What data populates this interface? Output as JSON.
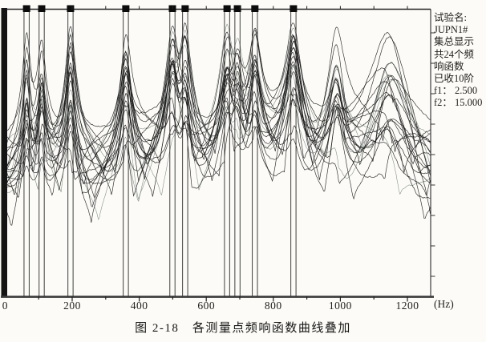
{
  "figure": {
    "caption": "图 2-18　各测量点频响函数曲线叠加"
  },
  "info_panel": {
    "lines": [
      "试验名:",
      "JUPN1#",
      "集总显示",
      "共24个频",
      "响函数",
      "已收10阶",
      "f1： 2.500",
      "f2： 15.000"
    ]
  },
  "chart_data": {
    "type": "line",
    "title": "各测量点频响函数曲线叠加",
    "x_unit": "(Hz)",
    "xlim": [
      0,
      1270
    ],
    "x_ticks": [
      0,
      200,
      400,
      600,
      800,
      1000,
      1200
    ],
    "x_minor_tick_step_hz": 100,
    "grid": false,
    "legend": null,
    "num_curves": 24,
    "marked_mode_count": 10,
    "marked_mode_frequencies_hz": [
      64,
      109,
      195,
      360,
      499,
      537,
      662,
      693,
      745,
      860
    ],
    "analysis_band": {
      "f1": "2.500",
      "f2": "15.000"
    },
    "resonances": [
      {
        "f_hz": 64,
        "rel_amp": 0.6,
        "half_width_hz": 9
      },
      {
        "f_hz": 109,
        "rel_amp": 0.62,
        "half_width_hz": 10
      },
      {
        "f_hz": 195,
        "rel_amp": 0.85,
        "half_width_hz": 11
      },
      {
        "f_hz": 360,
        "rel_amp": 1.0,
        "half_width_hz": 13
      },
      {
        "f_hz": 499,
        "rel_amp": 1.0,
        "half_width_hz": 15
      },
      {
        "f_hz": 537,
        "rel_amp": 0.82,
        "half_width_hz": 13
      },
      {
        "f_hz": 662,
        "rel_amp": 1.0,
        "half_width_hz": 15
      },
      {
        "f_hz": 693,
        "rel_amp": 0.85,
        "half_width_hz": 14
      },
      {
        "f_hz": 745,
        "rel_amp": 0.8,
        "half_width_hz": 14
      },
      {
        "f_hz": 860,
        "rel_amp": 1.0,
        "half_width_hz": 17
      },
      {
        "f_hz": 988,
        "rel_amp": 0.95,
        "half_width_hz": 18
      },
      {
        "f_hz": 1145,
        "rel_amp": 0.72,
        "half_width_hz": 40
      }
    ],
    "curve_color": "#181818",
    "faint_curve_color": "#4a5a54",
    "cursor_color": "#2b2b2b",
    "marker_color": "#0c0c0c",
    "seed": 7
  }
}
